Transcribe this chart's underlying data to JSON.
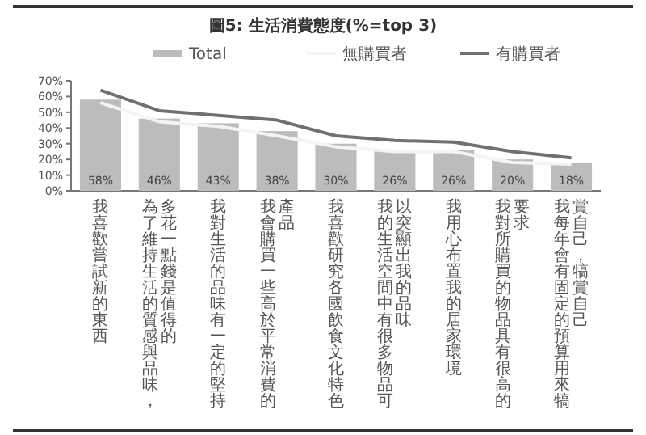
{
  "chart_data": {
    "type": "bar",
    "title": "圖5: 生活消費態度(%=top 3)",
    "categories": [
      "我喜歡嘗試新的東西",
      "為了維持生活的質感與品味，多花一點錢是值得的",
      "我對生活的品味有一定的堅持",
      "我會購買一些高於平常消費的產品",
      "我喜歡研究各國飲食文化特色",
      "我的生活空間中有很多物品可以突顯出我的品味",
      "我用心布置我的居家環境",
      "我對所購買的物品具有很高的要求",
      "我每年會有固定的預算用來犒賞自己，犒賞自己"
    ],
    "series": [
      {
        "name": "Total",
        "color": "#bcbcbc",
        "values": [
          58,
          46,
          43,
          38,
          30,
          26,
          26,
          20,
          18
        ],
        "value_labels": [
          "58%",
          "46%",
          "43%",
          "38%",
          "30%",
          "26%",
          "26%",
          "20%",
          "18%"
        ]
      },
      {
        "name": "無購買者",
        "type": "line",
        "color": "#f4f4f4",
        "values": [
          56,
          44,
          41,
          35,
          28,
          25,
          25,
          18,
          17
        ]
      },
      {
        "name": "有購買者",
        "type": "line",
        "color": "#707070",
        "values": [
          64,
          51,
          48,
          45,
          35,
          32,
          31,
          25,
          21
        ]
      }
    ],
    "ylim": [
      0,
      70
    ],
    "yticks": [
      {
        "value": 0,
        "label": "0%"
      },
      {
        "value": 10,
        "label": "10%"
      },
      {
        "value": 20,
        "label": "20%"
      },
      {
        "value": 30,
        "label": "30%"
      },
      {
        "value": 40,
        "label": "40%"
      },
      {
        "value": 50,
        "label": "50%"
      },
      {
        "value": 60,
        "label": "60%"
      },
      {
        "value": 70,
        "label": "70%"
      }
    ],
    "legend": "top",
    "grid": false
  }
}
